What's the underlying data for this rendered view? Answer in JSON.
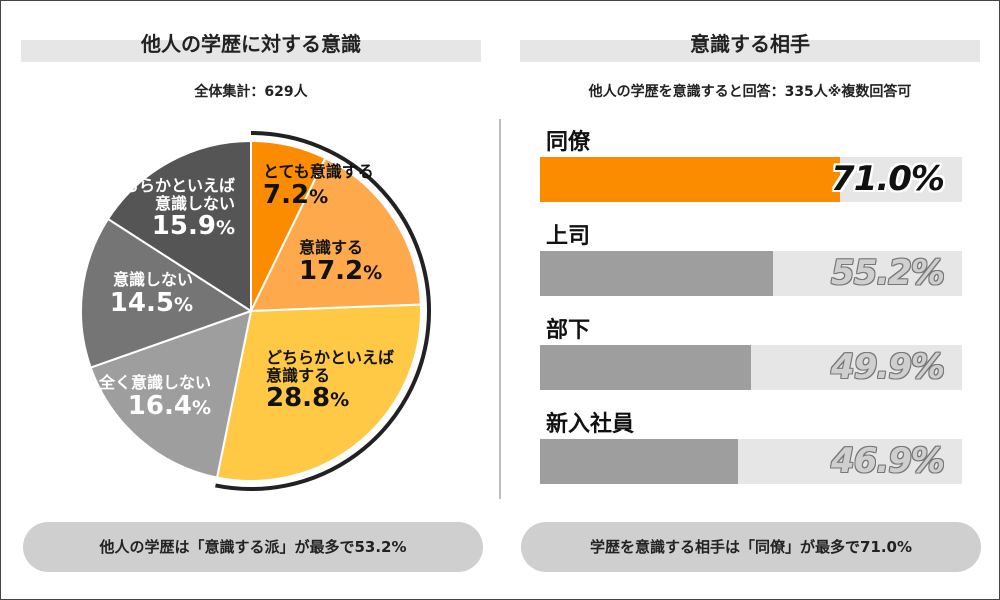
{
  "left_panel": {
    "title": "他人の学歴に対する意識",
    "subtitle": "全体集計：629人",
    "summary": "他人の学歴は「意識する派」が最多で53.2%"
  },
  "right_panel": {
    "title": "意識する相手",
    "subtitle": "他人の学歴を意識すると回答：335人※複数回答可",
    "summary": "学歴を意識する相手は「同僚」が最多で71.0%"
  },
  "chart_data": [
    {
      "type": "pie",
      "slices": [
        {
          "label_lines": [
            "とても意識する"
          ],
          "value": 7.2,
          "value_text": "7.2",
          "color": "#fb8c00",
          "text_color": "#111111"
        },
        {
          "label_lines": [
            "意識する"
          ],
          "value": 17.2,
          "value_text": "17.2",
          "color": "#ffa94d",
          "text_color": "#111111"
        },
        {
          "label_lines": [
            "どちらかといえば",
            "意識する"
          ],
          "value": 28.8,
          "value_text": "28.8",
          "color": "#ffc845",
          "text_color": "#111111"
        },
        {
          "label_lines": [
            "全く意識しない"
          ],
          "value": 16.4,
          "value_text": "16.4",
          "color": "#9e9e9e",
          "text_color": "#ffffff"
        },
        {
          "label_lines": [
            "意識しない"
          ],
          "value": 14.5,
          "value_text": "14.5",
          "color": "#757575",
          "text_color": "#ffffff"
        },
        {
          "label_lines": [
            "どちらかといえば",
            "意識しない"
          ],
          "value": 15.9,
          "value_text": "15.9",
          "color": "#555555",
          "text_color": "#ffffff"
        }
      ],
      "unit": "%",
      "highlight_arc_slices": [
        "とても意識する",
        "意識する",
        "どちらかといえば意識する"
      ]
    },
    {
      "type": "bar",
      "orientation": "horizontal",
      "categories": [
        "同僚",
        "上司",
        "部下",
        "新入社員"
      ],
      "values": [
        71.0,
        55.2,
        49.9,
        46.9
      ],
      "value_labels": [
        "71.0%",
        "55.2%",
        "49.9%",
        "46.9%"
      ],
      "highlight_color": "#fb8c00",
      "base_color": "#9e9e9e",
      "xlim": [
        0,
        100
      ]
    }
  ]
}
